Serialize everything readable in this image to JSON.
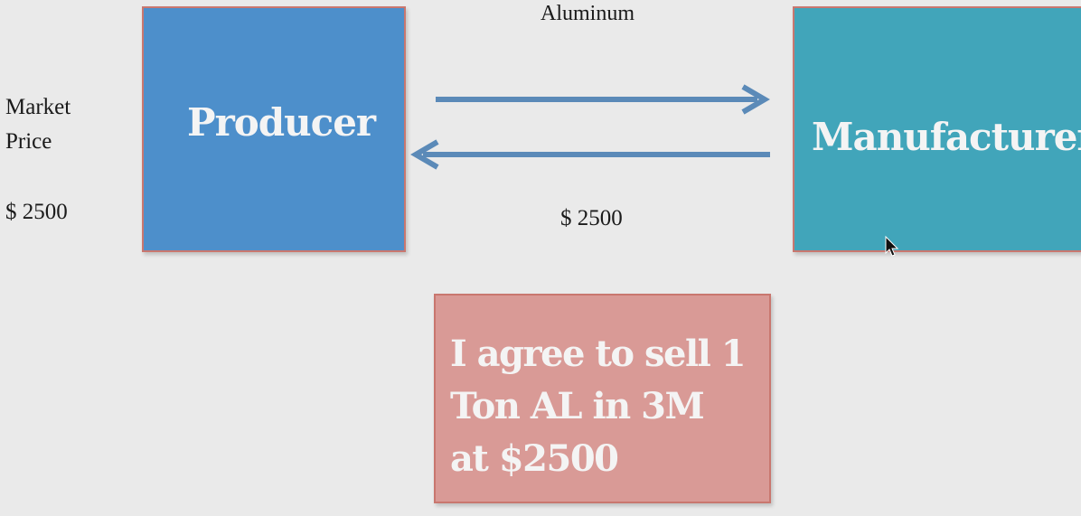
{
  "left_labels": {
    "market_line1": "Market",
    "market_line2": "Price",
    "price": "$ 2500"
  },
  "top_label": "Aluminum",
  "bottom_label": "$ 2500",
  "producer": {
    "label": "Producer",
    "color": "#4d8fcb"
  },
  "manufacturer": {
    "label": "Manufacturer",
    "color": "#41a5ba"
  },
  "contract": {
    "text": "I agree to sell 1 Ton AL in 3M at $2500",
    "color": "#d99a96"
  },
  "arrow_color": "#5b8ab8"
}
